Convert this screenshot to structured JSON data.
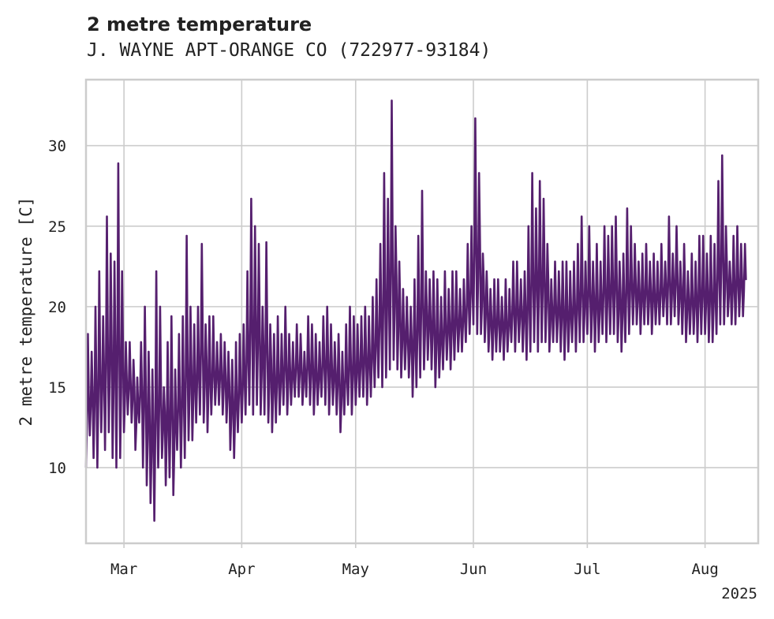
{
  "chart_data": {
    "type": "line",
    "title": "2 metre temperature",
    "subtitle": "J. WAYNE APT-ORANGE CO (722977-93184)",
    "ylabel": "2 metre temperature [C]",
    "xlabel": "",
    "x_range": [
      "2025-02-19",
      "2025-08-15"
    ],
    "ylim": [
      5.3,
      34.1
    ],
    "yticks": [
      10,
      15,
      20,
      25,
      30
    ],
    "xtick_dates": [
      "2025-03-01",
      "2025-04-01",
      "2025-05-01",
      "2025-06-01",
      "2025-07-01",
      "2025-08-01"
    ],
    "xtick_labels": [
      "Mar",
      "Apr",
      "May",
      "Jun",
      "Jul",
      "Aug"
    ],
    "x_offset_label": "2025",
    "grid": true,
    "color": "#551f6e",
    "series": [
      {
        "resolution": "6-hourly",
        "x": [
          "2025-02-19",
          "2025-02-20",
          "2025-02-21",
          "2025-02-22",
          "2025-02-23",
          "2025-02-24",
          "2025-02-25",
          "2025-02-26",
          "2025-02-27",
          "2025-02-28",
          "2025-03-01",
          "2025-03-02",
          "2025-03-03",
          "2025-03-04",
          "2025-03-05",
          "2025-03-06",
          "2025-03-07",
          "2025-03-08",
          "2025-03-09",
          "2025-03-10",
          "2025-03-11",
          "2025-03-12",
          "2025-03-13",
          "2025-03-14",
          "2025-03-15",
          "2025-03-16",
          "2025-03-17",
          "2025-03-18",
          "2025-03-19",
          "2025-03-20",
          "2025-03-21",
          "2025-03-22",
          "2025-03-23",
          "2025-03-24",
          "2025-03-25",
          "2025-03-26",
          "2025-03-27",
          "2025-03-28",
          "2025-03-29",
          "2025-03-30",
          "2025-03-31",
          "2025-04-01",
          "2025-04-02",
          "2025-04-03",
          "2025-04-04",
          "2025-04-05",
          "2025-04-06",
          "2025-04-07",
          "2025-04-08",
          "2025-04-09",
          "2025-04-10",
          "2025-04-11",
          "2025-04-12",
          "2025-04-13",
          "2025-04-14",
          "2025-04-15",
          "2025-04-16",
          "2025-04-17",
          "2025-04-18",
          "2025-04-19",
          "2025-04-20",
          "2025-04-21",
          "2025-04-22",
          "2025-04-23",
          "2025-04-24",
          "2025-04-25",
          "2025-04-26",
          "2025-04-27",
          "2025-04-28",
          "2025-04-29",
          "2025-04-30",
          "2025-05-01",
          "2025-05-02",
          "2025-05-03",
          "2025-05-04",
          "2025-05-05",
          "2025-05-06",
          "2025-05-07",
          "2025-05-08",
          "2025-05-09",
          "2025-05-10",
          "2025-05-11",
          "2025-05-12",
          "2025-05-13",
          "2025-05-14",
          "2025-05-15",
          "2025-05-16",
          "2025-05-17",
          "2025-05-18",
          "2025-05-19",
          "2025-05-20",
          "2025-05-21",
          "2025-05-22",
          "2025-05-23",
          "2025-05-24",
          "2025-05-25",
          "2025-05-26",
          "2025-05-27",
          "2025-05-28",
          "2025-05-29",
          "2025-05-30",
          "2025-05-31",
          "2025-06-01",
          "2025-06-02",
          "2025-06-03",
          "2025-06-04",
          "2025-06-05",
          "2025-06-06",
          "2025-06-07",
          "2025-06-08",
          "2025-06-09",
          "2025-06-10",
          "2025-06-11",
          "2025-06-12",
          "2025-06-13",
          "2025-06-14",
          "2025-06-15",
          "2025-06-16",
          "2025-06-17",
          "2025-06-18",
          "2025-06-19",
          "2025-06-20",
          "2025-06-21",
          "2025-06-22",
          "2025-06-23",
          "2025-06-24",
          "2025-06-25",
          "2025-06-26",
          "2025-06-27",
          "2025-06-28",
          "2025-06-29",
          "2025-06-30",
          "2025-07-01",
          "2025-07-02",
          "2025-07-03",
          "2025-07-04",
          "2025-07-05",
          "2025-07-06",
          "2025-07-07",
          "2025-07-08",
          "2025-07-09",
          "2025-07-10",
          "2025-07-11",
          "2025-07-12",
          "2025-07-13",
          "2025-07-14",
          "2025-07-15",
          "2025-07-16",
          "2025-07-17",
          "2025-07-18",
          "2025-07-19",
          "2025-07-20",
          "2025-07-21",
          "2025-07-22",
          "2025-07-23",
          "2025-07-24",
          "2025-07-25",
          "2025-07-26",
          "2025-07-27",
          "2025-07-28",
          "2025-07-29",
          "2025-07-30",
          "2025-07-31",
          "2025-08-01",
          "2025-08-02",
          "2025-08-03",
          "2025-08-04",
          "2025-08-05",
          "2025-08-06",
          "2025-08-07",
          "2025-08-08",
          "2025-08-09",
          "2025-08-10",
          "2025-08-11",
          "2025-08-12",
          "2025-08-13",
          "2025-08-14",
          "2025-08-15"
        ],
        "daily_min": [
          10.0,
          12.0,
          10.6,
          10.0,
          12.2,
          11.1,
          12.2,
          10.6,
          10.0,
          10.6,
          12.2,
          13.3,
          12.8,
          11.1,
          12.8,
          10.0,
          8.9,
          7.8,
          6.7,
          10.0,
          10.6,
          8.9,
          9.4,
          8.3,
          11.1,
          10.0,
          10.6,
          11.7,
          11.7,
          12.8,
          13.3,
          12.8,
          12.2,
          13.3,
          13.9,
          13.9,
          13.3,
          12.8,
          11.1,
          10.6,
          12.2,
          12.8,
          13.3,
          13.9,
          13.3,
          13.9,
          13.3,
          13.3,
          12.8,
          12.2,
          12.8,
          13.3,
          13.9,
          13.3,
          13.9,
          14.4,
          14.4,
          13.9,
          14.4,
          13.9,
          13.3,
          13.9,
          14.4,
          13.9,
          13.3,
          13.9,
          13.3,
          12.2,
          13.3,
          13.9,
          13.3,
          13.9,
          14.4,
          14.4,
          13.9,
          14.4,
          15.0,
          15.6,
          15.0,
          15.6,
          16.1,
          16.7,
          16.1,
          15.6,
          16.1,
          15.6,
          14.4,
          15.0,
          15.6,
          16.1,
          16.7,
          16.1,
          15.0,
          15.6,
          16.1,
          16.7,
          16.1,
          16.7,
          17.2,
          17.2,
          17.8,
          18.3,
          18.9,
          18.3,
          18.3,
          17.8,
          17.2,
          16.7,
          17.2,
          17.2,
          16.7,
          17.2,
          17.8,
          17.2,
          17.8,
          17.2,
          16.7,
          17.2,
          17.8,
          17.2,
          17.8,
          17.8,
          17.2,
          17.8,
          17.8,
          17.2,
          16.7,
          17.2,
          17.8,
          17.2,
          17.8,
          17.8,
          18.3,
          17.8,
          17.2,
          17.8,
          18.3,
          17.8,
          18.3,
          18.3,
          17.8,
          17.2,
          17.8,
          18.3,
          18.9,
          18.9,
          18.3,
          18.9,
          18.9,
          18.3,
          18.9,
          18.9,
          19.4,
          18.9,
          18.9,
          19.4,
          18.9,
          18.3,
          17.8,
          18.3,
          18.3,
          17.8,
          18.3,
          18.3,
          17.8,
          17.8,
          18.3,
          18.9,
          18.9,
          19.4,
          18.9,
          18.9,
          19.4,
          19.4
        ],
        "daily_max": [
          18.3,
          17.2,
          20.0,
          22.2,
          19.4,
          25.6,
          23.3,
          22.8,
          28.9,
          22.2,
          17.8,
          17.8,
          16.7,
          15.6,
          17.8,
          20.0,
          17.2,
          16.1,
          22.2,
          20.0,
          15.0,
          17.8,
          19.4,
          16.1,
          18.3,
          19.4,
          24.4,
          20.0,
          18.9,
          20.0,
          23.9,
          18.9,
          19.4,
          19.4,
          17.8,
          18.3,
          17.8,
          17.2,
          16.7,
          17.8,
          18.3,
          18.9,
          22.2,
          26.7,
          25.0,
          23.9,
          20.0,
          24.0,
          18.9,
          18.3,
          19.4,
          18.3,
          20.0,
          18.3,
          17.8,
          18.9,
          18.3,
          17.2,
          19.4,
          18.9,
          18.3,
          17.8,
          19.4,
          20.0,
          18.9,
          17.8,
          18.3,
          17.2,
          18.9,
          20.0,
          19.4,
          18.9,
          19.4,
          20.0,
          19.4,
          20.6,
          21.7,
          23.9,
          28.3,
          26.7,
          32.8,
          25.0,
          22.8,
          21.1,
          20.6,
          20.0,
          21.7,
          24.4,
          27.2,
          22.2,
          21.7,
          22.2,
          21.7,
          20.6,
          22.2,
          21.1,
          22.2,
          22.2,
          21.1,
          21.7,
          23.9,
          25.0,
          31.7,
          28.3,
          23.3,
          22.2,
          21.1,
          21.7,
          21.7,
          20.6,
          21.7,
          21.1,
          22.8,
          22.8,
          21.7,
          22.2,
          25.0,
          28.3,
          26.1,
          27.8,
          26.7,
          23.9,
          21.7,
          22.8,
          22.2,
          22.8,
          22.8,
          22.2,
          22.8,
          23.9,
          25.6,
          22.8,
          25.0,
          22.8,
          23.9,
          22.8,
          25.0,
          24.4,
          25.0,
          25.6,
          22.8,
          23.3,
          26.1,
          25.0,
          23.9,
          22.8,
          23.3,
          23.9,
          22.8,
          23.3,
          22.8,
          23.9,
          22.8,
          25.6,
          23.3,
          25.0,
          22.8,
          23.9,
          22.2,
          23.3,
          22.8,
          24.4,
          24.4,
          23.3,
          24.4,
          23.9,
          27.8,
          29.4,
          25.0,
          22.8,
          24.4,
          25.0,
          23.9,
          23.9,
          23.9,
          23.9
        ]
      }
    ]
  }
}
